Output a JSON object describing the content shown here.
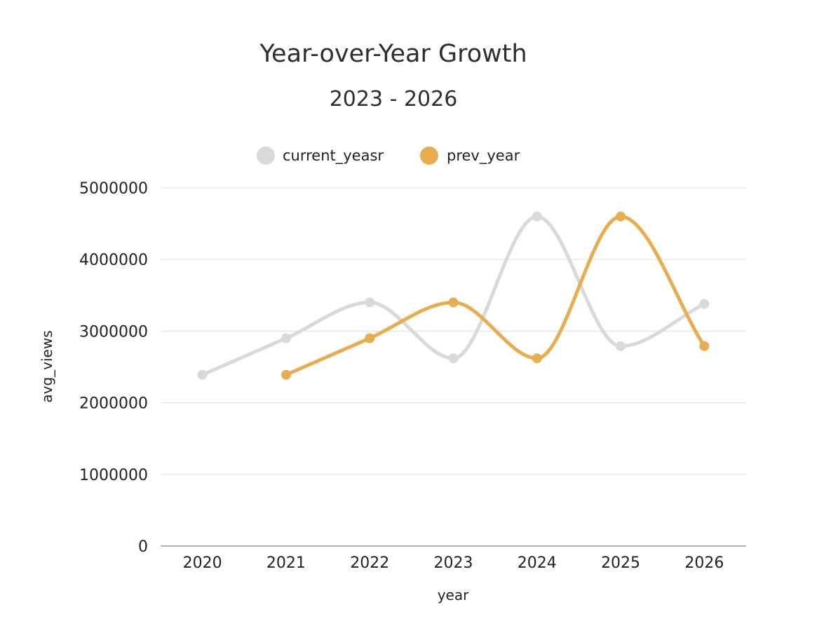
{
  "chart_data": {
    "type": "line",
    "title": "Year-over-Year Growth",
    "subtitle": "2023 - 2026",
    "xlabel": "year",
    "ylabel": "avg_views",
    "categories": [
      "2020",
      "2021",
      "2022",
      "2023",
      "2024",
      "2025",
      "2026"
    ],
    "ylim": [
      0,
      5000000
    ],
    "yticks": [
      0,
      1000000,
      2000000,
      3000000,
      4000000,
      5000000
    ],
    "ytick_labels": [
      "0",
      "1000000",
      "2000000",
      "3000000",
      "4000000",
      "5000000"
    ],
    "grid": true,
    "legend_position": "top-center",
    "smooth": true,
    "series": [
      {
        "name": "current_yeasr",
        "color": "#d9d9d9",
        "values": [
          2390000,
          2900000,
          3400000,
          2620000,
          4600000,
          2790000,
          3380000
        ]
      },
      {
        "name": "prev_year",
        "color": "#e8ad4f",
        "values": [
          null,
          2390000,
          2900000,
          3400000,
          2620000,
          4600000,
          2790000
        ]
      }
    ]
  }
}
